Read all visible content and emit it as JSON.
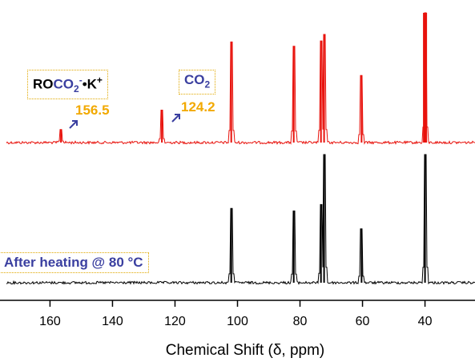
{
  "chart_data": {
    "type": "line",
    "xlabel": "Chemical Shift (δ, ppm)",
    "xlim": [
      176,
      24
    ],
    "x_reversed": true,
    "x_ticks": [
      160,
      140,
      120,
      100,
      80,
      60,
      40
    ],
    "grid": false,
    "series": [
      {
        "name": "",
        "color": "#e8120c",
        "peaks": [
          {
            "x": 156.5,
            "height": 0.12
          },
          {
            "x": 124.2,
            "height": 0.3
          },
          {
            "x": 102.0,
            "height": 0.93
          },
          {
            "x": 82.0,
            "height": 0.89
          },
          {
            "x": 73.3,
            "height": 0.94
          },
          {
            "x": 72.3,
            "height": 1.0
          },
          {
            "x": 60.3,
            "height": 0.62
          },
          {
            "x": 40.0,
            "height": 1.2
          }
        ]
      },
      {
        "name": "After heating @ 80 °C",
        "color": "#000000",
        "peaks": [
          {
            "x": 102.0,
            "height": 0.58
          },
          {
            "x": 82.0,
            "height": 0.56
          },
          {
            "x": 73.3,
            "height": 0.61
          },
          {
            "x": 72.3,
            "height": 1.0
          },
          {
            "x": 60.3,
            "height": 0.42
          },
          {
            "x": 40.0,
            "height": 1.0
          }
        ]
      }
    ],
    "annotations": [
      {
        "text": "156.5",
        "x": 156.5
      },
      {
        "text": "124.2",
        "x": 124.2
      }
    ]
  },
  "labels": {
    "roco2_prefix": "RO",
    "roco2_main": "CO",
    "roco2_sub": "2",
    "roco2_sup1": "-",
    "roco2_dot": "•K",
    "roco2_sup2": "+",
    "co2_main": "CO",
    "co2_sub": "2",
    "after_heating": "After heating @ 80 °C"
  },
  "colors": {
    "label_blue": "#3a3fa0",
    "peak_value": "#f2a900",
    "box_border": "#e0a800"
  }
}
